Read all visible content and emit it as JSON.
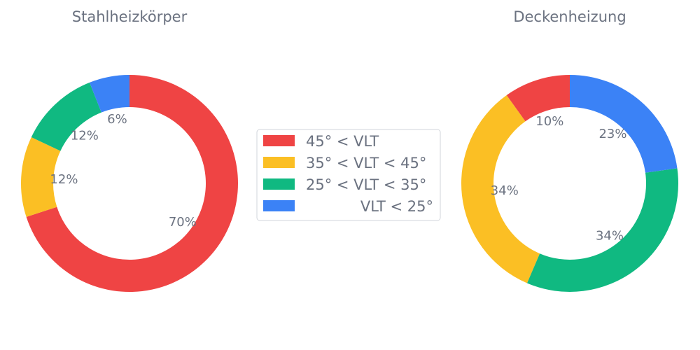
{
  "chart_data": [
    {
      "type": "pie",
      "donut": true,
      "title": "Stahlheizkörper",
      "categories": [
        "45° < VLT",
        "35° < VLT < 45°",
        "25° < VLT < 35°",
        "VLT < 25°"
      ],
      "values": [
        70,
        12,
        12,
        6
      ],
      "labels": [
        "70%",
        "12%",
        "12%",
        "6%"
      ]
    },
    {
      "type": "pie",
      "donut": true,
      "title": "Deckenheizung",
      "categories": [
        "45° < VLT",
        "35° < VLT < 45°",
        "25° < VLT < 35°",
        "VLT < 25°"
      ],
      "values": [
        10,
        34,
        34,
        23
      ],
      "labels": [
        "10%",
        "34%",
        "34%",
        "23%"
      ]
    }
  ],
  "legend": {
    "placement": "center",
    "items": [
      {
        "label": "45° < VLT",
        "color": "#ef4444"
      },
      {
        "label": "35° < VLT < 45°",
        "color": "#fbbf24"
      },
      {
        "label": "25° < VLT < 35°",
        "color": "#10b981"
      },
      {
        "label": "VLT < 25°",
        "color": "#3b82f6"
      }
    ]
  },
  "colors": [
    "#ef4444",
    "#fbbf24",
    "#10b981",
    "#3b82f6"
  ]
}
